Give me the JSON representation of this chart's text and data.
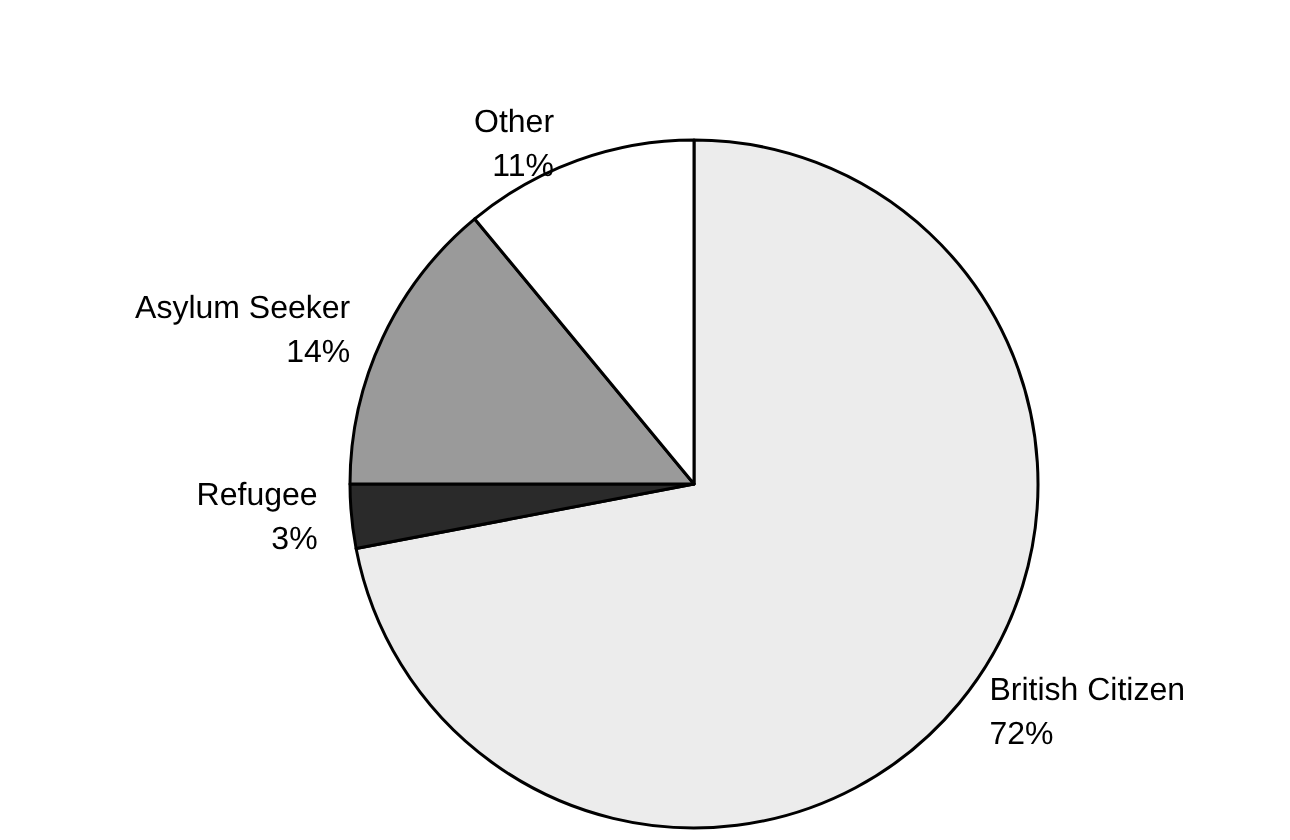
{
  "chart_data": {
    "type": "pie",
    "categories": [
      "British Citizen",
      "Refugee",
      "Asylum Seeker",
      "Other"
    ],
    "values": [
      72,
      3,
      14,
      11
    ],
    "value_labels": [
      "72%",
      "3%",
      "14%",
      "11%"
    ],
    "colors": [
      "#ececec",
      "#2a2a2a",
      "#9a9a9a",
      "#ffffff"
    ]
  }
}
